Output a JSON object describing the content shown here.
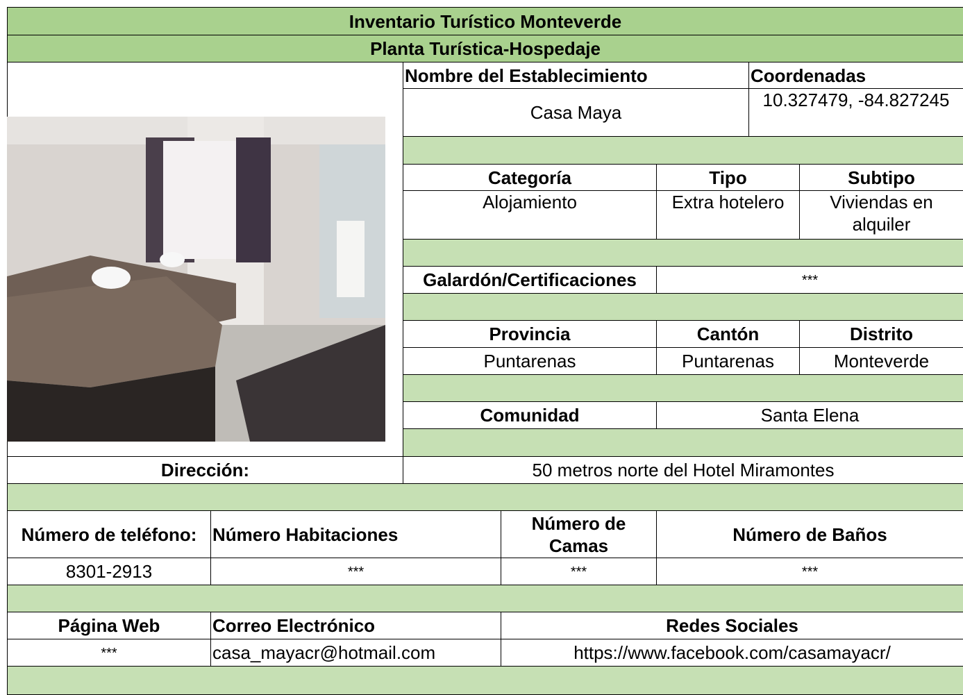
{
  "header": {
    "title": "Inventario Turístico Monteverde",
    "subtitle": "Planta Turística-Hospedaje"
  },
  "establishment": {
    "name_label": "Nombre del Establecimiento",
    "name": "Casa Maya",
    "coordinates_label": "Coordenadas",
    "coordinates": "10.327479, -84.827245"
  },
  "classification": {
    "labels": [
      "Categoría",
      "Tipo",
      "Subtipo"
    ],
    "values": [
      "Alojamiento",
      "Extra hotelero",
      "Viviendas en alquiler"
    ]
  },
  "awards": {
    "label": "Galardón/Certificaciones",
    "value": "***"
  },
  "location": {
    "labels": [
      "Provincia",
      "Cantón",
      "Distrito"
    ],
    "values": [
      "Puntarenas",
      "Puntarenas",
      "Monteverde"
    ],
    "community_label": "Comunidad",
    "community": "Santa Elena",
    "address_label": "Dirección:",
    "address": "50 metros norte del Hotel Miramontes"
  },
  "capacity": {
    "labels": [
      "Número de teléfono:",
      "Número Habitaciones",
      "Número de Camas",
      "Número de Baños"
    ],
    "values": [
      "8301-2913",
      "***",
      "***",
      "***"
    ]
  },
  "contact": {
    "labels": [
      "Página Web",
      "Correo Electrónico",
      "Redes Sociales"
    ],
    "values": [
      "***",
      "casa_mayacr@hotmail.com",
      "https://www.facebook.com/casamayacr/"
    ]
  }
}
